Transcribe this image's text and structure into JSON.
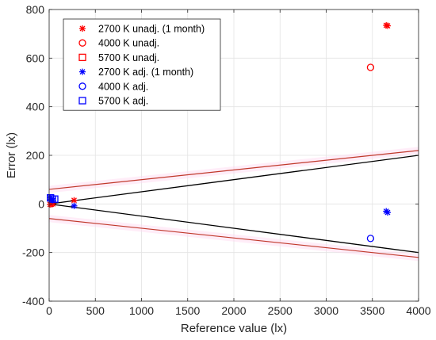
{
  "chart_data": {
    "type": "scatter",
    "xlabel": "Reference value (lx)",
    "ylabel": "Error (lx)",
    "xlim": [
      0,
      4000
    ],
    "ylim": [
      -400,
      800
    ],
    "xticks": [
      0,
      500,
      1000,
      1500,
      2000,
      2500,
      3000,
      3500,
      4000
    ],
    "yticks": [
      -400,
      -200,
      0,
      200,
      400,
      600,
      800
    ],
    "grid": true,
    "legend_position": "top-left",
    "series": [
      {
        "name": "2700 K unadj. (1 month)",
        "marker": "asterisk",
        "color": "#ff0000",
        "x": [
          10,
          25,
          40,
          270,
          3650,
          3665
        ],
        "y": [
          -2,
          -1,
          0,
          15,
          735,
          733
        ]
      },
      {
        "name": "4000 K unadj.",
        "marker": "circle",
        "color": "#ff0000",
        "x": [
          3480
        ],
        "y": [
          562
        ]
      },
      {
        "name": "5700 K unadj.",
        "marker": "square",
        "color": "#ff0000",
        "x": [],
        "y": []
      },
      {
        "name": "2700 K adj. (1 month)",
        "marker": "asterisk",
        "color": "#0000ff",
        "x": [
          10,
          25,
          40,
          270,
          3650,
          3665
        ],
        "y": [
          25,
          20,
          15,
          -8,
          -30,
          -35
        ]
      },
      {
        "name": "4000 K adj.",
        "marker": "circle",
        "color": "#0000ff",
        "x": [
          3480
        ],
        "y": [
          -142
        ]
      },
      {
        "name": "5700 K adj.",
        "marker": "square",
        "color": "#0000ff",
        "x": [
          15,
          35,
          60
        ],
        "y": [
          25,
          20,
          20
        ]
      }
    ],
    "reference_lines": [
      {
        "color": "#ff0000",
        "x": [
          0,
          4000
        ],
        "y": [
          60,
          220
        ]
      },
      {
        "color": "#ff0000",
        "x": [
          0,
          4000
        ],
        "y": [
          -60,
          -220
        ]
      },
      {
        "color": "#000000",
        "x": [
          0,
          4000
        ],
        "y": [
          0,
          200
        ]
      },
      {
        "color": "#000000",
        "x": [
          0,
          4000
        ],
        "y": [
          0,
          -200
        ]
      }
    ]
  }
}
